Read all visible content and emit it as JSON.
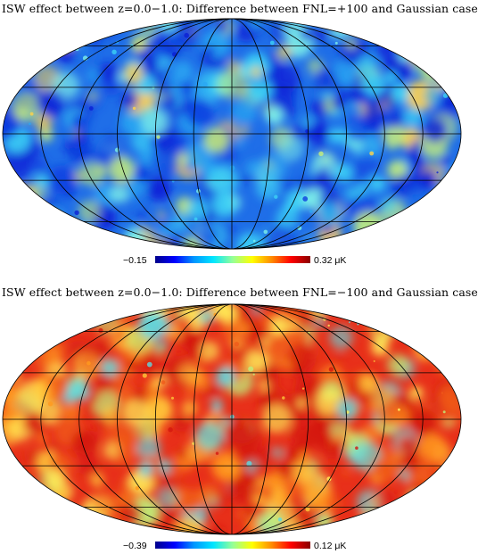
{
  "panels": [
    {
      "title": "ISW effect between z=0.0−1.0: Difference between FNL=+100 and Gaussian case",
      "scale_min": "−0.15",
      "scale_max": "0.32",
      "unit": "μK",
      "colormap": [
        "#00008b",
        "#0000ff",
        "#0096ff",
        "#00e6ff",
        "#96ff96",
        "#ffff00",
        "#ff8c00",
        "#ff0000",
        "#8b0000"
      ],
      "base_color": "#1f6ee8",
      "blob_colors": [
        "#0a1fd6",
        "#0d3ee0",
        "#2aa8f2",
        "#3cd2f5",
        "#7ef0e8",
        "#c8f07a",
        "#ffd24a"
      ]
    },
    {
      "title": "ISW effect between z=0.0−1.0: Difference between FNL=−100 and Gaussian case",
      "scale_min": "−0.39",
      "scale_max": "0.12",
      "unit": "μK",
      "colormap": [
        "#00008b",
        "#0000ff",
        "#0096ff",
        "#00e6ff",
        "#96ff96",
        "#ffff00",
        "#ff8c00",
        "#ff0000",
        "#8b0000"
      ],
      "base_color": "#e8301a",
      "blob_colors": [
        "#d4180f",
        "#f05a1a",
        "#ff9a1e",
        "#ffc83a",
        "#fff05a",
        "#bff07a",
        "#5fd8e0"
      ]
    }
  ]
}
